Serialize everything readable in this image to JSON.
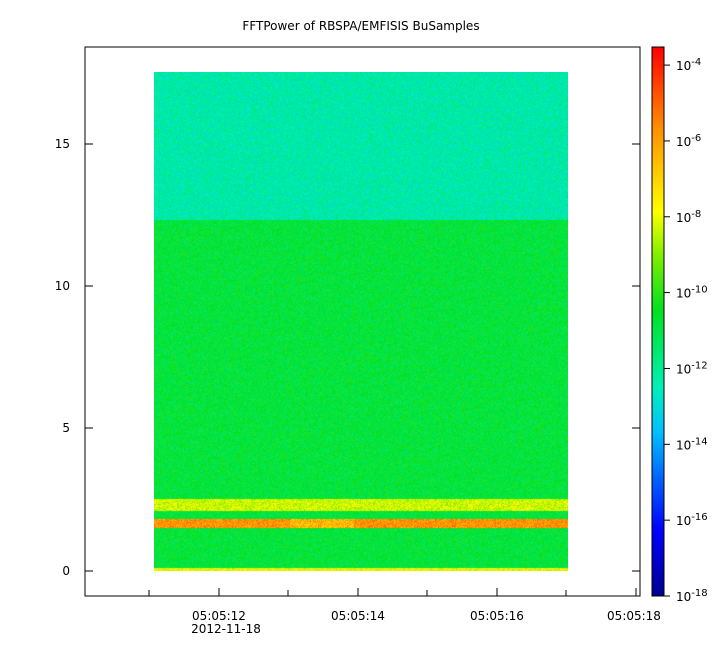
{
  "chart_data": {
    "type": "heatmap",
    "title": "FFTPower of RBSPA/EMFISIS  BuSamples",
    "xlabel": "",
    "ylabel": "",
    "x_ticks": [
      "05:05:12",
      "05:05:14",
      "05:05:16",
      "05:05:18"
    ],
    "x_date_label": "2012-11-18",
    "y_ticks": [
      "0",
      "5",
      "10",
      "15"
    ],
    "ylim": [
      -0.9,
      18.3
    ],
    "data_y_range": [
      0,
      17.5
    ],
    "colorbar": {
      "scale": "log",
      "range": [
        1e-18,
        0.0003
      ],
      "tick_labels": [
        {
          "base": "10",
          "exp": "-4"
        },
        {
          "base": "10",
          "exp": "-6"
        },
        {
          "base": "10",
          "exp": "-8"
        },
        {
          "base": "10",
          "exp": "-10"
        },
        {
          "base": "10",
          "exp": "-12"
        },
        {
          "base": "10",
          "exp": "-14"
        },
        {
          "base": "10",
          "exp": "-16"
        },
        {
          "base": "10",
          "exp": "-18"
        }
      ]
    },
    "bands": [
      {
        "y_range": [
          12.3,
          17.5
        ],
        "log_power": -12.3
      },
      {
        "y_range": [
          2.8,
          12.3
        ],
        "log_power": -10.8
      },
      {
        "y_range": [
          2.1,
          2.5
        ],
        "log_power": -8.3
      },
      {
        "y_range": [
          1.5,
          1.8
        ],
        "log_power": -5.8
      },
      {
        "y_range": [
          0.0,
          0.1
        ],
        "log_power": -8.0
      }
    ]
  }
}
